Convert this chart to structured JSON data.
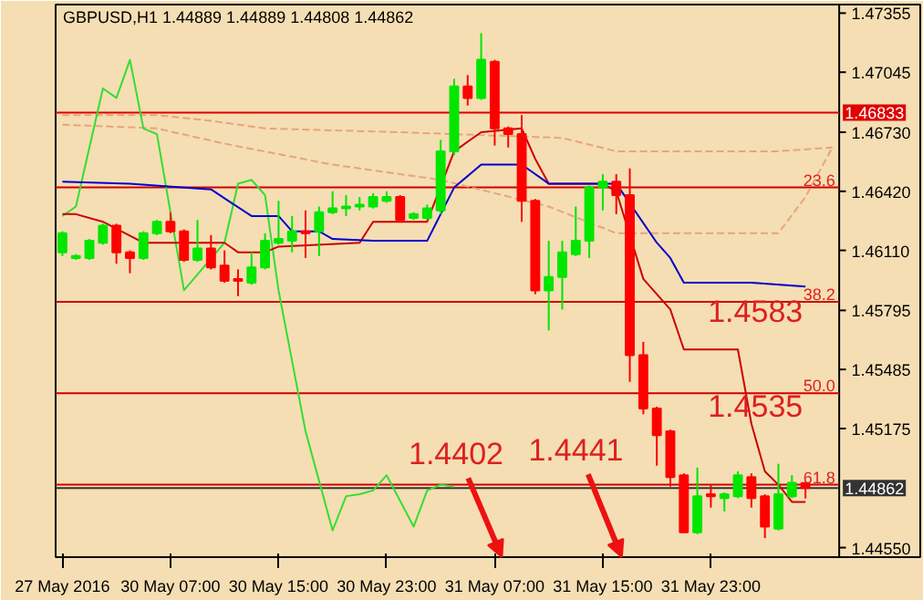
{
  "chart_data": {
    "type": "candlestick",
    "title": "GBPUSD,H1  1.44889 1.44889 1.44808 1.44862",
    "categories": [
      "27 May 2016",
      null,
      null,
      null,
      null,
      null,
      null,
      null,
      "30 May 07:00",
      null,
      null,
      null,
      null,
      null,
      null,
      null,
      "30 May 15:00",
      null,
      null,
      null,
      null,
      null,
      null,
      null,
      "30 May 23:00",
      null,
      null,
      null,
      null,
      null,
      null,
      null,
      "31 May 07:00",
      null,
      null,
      null,
      null,
      null,
      null,
      null,
      "31 May 15:00",
      null,
      null,
      null,
      null,
      null,
      null,
      null,
      "31 May 23:00",
      null,
      null,
      null,
      null,
      null,
      null,
      null,
      null,
      null
    ],
    "ohlc": [
      [
        1.461,
        1.4621,
        1.4608,
        1.462
      ],
      [
        1.4607,
        1.4609,
        1.4606,
        1.4608
      ],
      [
        1.4607,
        1.4617,
        1.4606,
        1.4616
      ],
      [
        1.4615,
        1.4625,
        1.4614,
        1.4624
      ],
      [
        1.4624,
        1.4625,
        1.4604,
        1.461
      ],
      [
        1.461,
        1.4611,
        1.4599,
        1.4607
      ],
      [
        1.4607,
        1.4621,
        1.4606,
        1.462
      ],
      [
        1.462,
        1.4627,
        1.4619,
        1.4626
      ],
      [
        1.4626,
        1.4631,
        1.462,
        1.4621
      ],
      [
        1.4621,
        1.4622,
        1.4605,
        1.4606
      ],
      [
        1.4606,
        1.4627,
        1.4605,
        1.4612
      ],
      [
        1.4612,
        1.4619,
        1.4601,
        1.4602
      ],
      [
        1.4603,
        1.4611,
        1.4594,
        1.4595
      ],
      [
        1.4596,
        1.4601,
        1.4587,
        1.4595
      ],
      [
        1.4594,
        1.461,
        1.4593,
        1.4602
      ],
      [
        1.4602,
        1.462,
        1.4601,
        1.4616
      ],
      [
        1.4615,
        1.4637,
        1.4614,
        1.4617
      ],
      [
        1.4616,
        1.4629,
        1.461,
        1.4621
      ],
      [
        1.4621,
        1.4632,
        1.4607,
        1.462
      ],
      [
        1.4621,
        1.4634,
        1.4608,
        1.4631
      ],
      [
        1.4631,
        1.4642,
        1.463,
        1.4633
      ],
      [
        1.4633,
        1.464,
        1.4629,
        1.4634
      ],
      [
        1.4634,
        1.4639,
        1.4632,
        1.4635
      ],
      [
        1.4634,
        1.4641,
        1.4633,
        1.4639
      ],
      [
        1.4637,
        1.4642,
        1.4636,
        1.4639
      ],
      [
        1.4639,
        1.464,
        1.4626,
        1.4627
      ],
      [
        1.4628,
        1.4631,
        1.4627,
        1.463
      ],
      [
        1.4628,
        1.4635,
        1.4627,
        1.4633
      ],
      [
        1.4632,
        1.4669,
        1.463,
        1.4663
      ],
      [
        1.4663,
        1.4701,
        1.4661,
        1.4697
      ],
      [
        1.4697,
        1.4703,
        1.4687,
        1.4691
      ],
      [
        1.4691,
        1.4725,
        1.469,
        1.4711
      ],
      [
        1.471,
        1.4711,
        1.4666,
        1.4675
      ],
      [
        1.4675,
        1.4676,
        1.4665,
        1.4672
      ],
      [
        1.4672,
        1.4682,
        1.4626,
        1.4637
      ],
      [
        1.4637,
        1.4638,
        1.4588,
        1.459
      ],
      [
        1.459,
        1.4616,
        1.4569,
        1.4597
      ],
      [
        1.4597,
        1.4616,
        1.458,
        1.461
      ],
      [
        1.4609,
        1.4634,
        1.4608,
        1.4616
      ],
      [
        1.4616,
        1.4645,
        1.4607,
        1.4644
      ],
      [
        1.4644,
        1.4651,
        1.4632,
        1.4647
      ],
      [
        1.4647,
        1.4651,
        1.463,
        1.464
      ],
      [
        1.464,
        1.4654,
        1.4542,
        1.4556
      ],
      [
        1.4556,
        1.4563,
        1.4525,
        1.4528
      ],
      [
        1.4528,
        1.4529,
        1.4498,
        1.4514
      ],
      [
        1.4516,
        1.4517,
        1.4487,
        1.4492
      ],
      [
        1.4493,
        1.4494,
        1.4463,
        1.4463
      ],
      [
        1.4463,
        1.4497,
        1.4462,
        1.4482
      ],
      [
        1.4483,
        1.4488,
        1.4476,
        1.4482
      ],
      [
        1.4481,
        1.4484,
        1.4474,
        1.4483
      ],
      [
        1.4482,
        1.4495,
        1.4481,
        1.4493
      ],
      [
        1.4492,
        1.4494,
        1.4476,
        1.4481
      ],
      [
        1.4482,
        1.4483,
        1.446,
        1.4466
      ],
      [
        1.4465,
        1.4499,
        1.4464,
        1.4483
      ],
      [
        1.4482,
        1.4493,
        1.4481,
        1.4489
      ],
      [
        1.44889,
        1.44889,
        1.44808,
        1.44862
      ],
      null,
      null
    ],
    "colors": [
      "#00e600",
      "#00e600",
      "#00e600",
      "#00e600",
      "#ff0000",
      "#ff0000",
      "#00e600",
      "#00e600",
      "#ff0000",
      "#ff0000",
      "#00e600",
      "#ff0000",
      "#ff0000",
      "#ff0000",
      "#00e600",
      "#00e600",
      "#00e600",
      "#00e600",
      "#ff0000",
      "#00e600",
      "#00e600",
      "#00e600",
      "#00e600",
      "#00e600",
      "#00e600",
      "#ff0000",
      "#00e600",
      "#00e600",
      "#00e600",
      "#00e600",
      "#ff0000",
      "#00e600",
      "#ff0000",
      "#ff0000",
      "#ff0000",
      "#ff0000",
      "#00e600",
      "#00e600",
      "#00e600",
      "#00e600",
      "#00e600",
      "#ff0000",
      "#ff0000",
      "#ff0000",
      "#ff0000",
      "#ff0000",
      "#ff0000",
      "#00e600",
      "#ff0000",
      "#00e600",
      "#00e600",
      "#ff0000",
      "#ff0000",
      "#00e600",
      "#00e600",
      "#ff0000",
      null,
      null
    ],
    "series": [
      {
        "type": "line",
        "color": "#e8a47c",
        "line_style": "dashed",
        "values": [
          1.4682,
          null,
          null,
          null,
          null,
          null,
          null,
          1.4682,
          null,
          null,
          null,
          1.4679,
          null,
          null,
          null,
          1.4675,
          null,
          null,
          null,
          null,
          null,
          null,
          null,
          null,
          null,
          1.4673,
          null,
          null,
          null,
          null,
          null,
          null,
          null,
          null,
          null,
          null,
          null,
          1.467,
          null,
          null,
          null,
          1.4663,
          null,
          null,
          null,
          null,
          null,
          null,
          null,
          null,
          null,
          null,
          null,
          1.4663,
          null,
          null,
          null,
          1.4665
        ]
      },
      {
        "type": "line",
        "color": "#e8a47c",
        "line_style": "dashed",
        "values": [
          1.4677,
          null,
          null,
          null,
          null,
          null,
          null,
          1.4675,
          null,
          null,
          null,
          null,
          1.4667,
          null,
          null,
          null,
          null,
          null,
          null,
          null,
          1.4656,
          null,
          null,
          null,
          null,
          null,
          null,
          null,
          1.4648,
          null,
          null,
          null,
          null,
          null,
          null,
          null,
          1.4634,
          null,
          null,
          null,
          null,
          1.462,
          null,
          null,
          null,
          null,
          null,
          null,
          null,
          null,
          null,
          null,
          null,
          1.462,
          null,
          1.4639,
          null,
          1.4665
        ]
      },
      {
        "type": "line",
        "color": "#33dd33",
        "line_style": "solid",
        "values": [
          1.4629,
          1.4634,
          null,
          1.4696,
          1.4691,
          1.4711,
          1.4675,
          1.4672,
          null,
          1.459,
          null,
          null,
          1.4615,
          1.4646,
          1.4648,
          1.464,
          1.459,
          null,
          1.4516,
          null,
          1.4464,
          1.4482,
          1.4483,
          1.4485,
          1.4493,
          null,
          1.4466,
          1.4485,
          1.4488,
          1.4487,
          null,
          null,
          null,
          null,
          null,
          null,
          null,
          null,
          null,
          null,
          null,
          null,
          null,
          null,
          null,
          null,
          null,
          null,
          null,
          null,
          null,
          null,
          null,
          null,
          null,
          null,
          null,
          null
        ]
      },
      {
        "type": "line",
        "color": "#cc0000",
        "line_style": "solid",
        "values": [
          1.463,
          1.463,
          null,
          1.4626,
          null,
          null,
          1.4615,
          null,
          null,
          null,
          null,
          null,
          1.4615,
          1.461,
          null,
          1.461,
          1.4613,
          null,
          null,
          null,
          null,
          null,
          1.4615,
          1.4626,
          null,
          null,
          null,
          1.4626,
          null,
          1.4663,
          null,
          1.4673,
          null,
          null,
          1.4675,
          1.4659,
          1.4646,
          null,
          null,
          null,
          1.4646,
          1.4642,
          null,
          1.4596,
          null,
          1.458,
          1.4559,
          null,
          null,
          null,
          1.4559,
          1.452,
          1.4495,
          1.4488,
          1.4479,
          1.4479,
          null,
          null
        ]
      },
      {
        "type": "line",
        "color": "#0000cc",
        "line_style": "solid",
        "values": [
          1.4647,
          null,
          null,
          null,
          null,
          1.4646,
          null,
          null,
          null,
          null,
          null,
          1.4643,
          null,
          null,
          1.4629,
          null,
          1.4629,
          1.4621,
          null,
          1.4621,
          1.4617,
          null,
          null,
          1.4616,
          null,
          null,
          null,
          1.4616,
          null,
          1.4644,
          null,
          1.4656,
          null,
          null,
          1.4656,
          null,
          1.4646,
          null,
          null,
          null,
          null,
          1.4646,
          null,
          null,
          1.4615,
          1.4607,
          1.4594,
          null,
          null,
          null,
          null,
          1.4594,
          null,
          null,
          null,
          1.4592,
          null,
          null
        ]
      }
    ],
    "ylim": [
      1.445,
      1.474
    ],
    "yticks": [
      {
        "value": 1.47355,
        "label": "1.47355"
      },
      {
        "value": 1.47045,
        "label": "1.47045"
      },
      {
        "value": 1.4673,
        "label": "1.46730"
      },
      {
        "value": 1.4642,
        "label": "1.46420"
      },
      {
        "value": 1.4611,
        "label": "1.46110"
      },
      {
        "value": 1.45795,
        "label": "1.45795"
      },
      {
        "value": 1.45485,
        "label": "1.45485"
      },
      {
        "value": 1.45175,
        "label": "1.45175"
      },
      {
        "value": 1.4455,
        "label": "1.44550"
      }
    ],
    "ref_lines": [
      {
        "axis": "y",
        "value": 1.46833,
        "label": "1.46833",
        "color": "#e00000"
      },
      {
        "axis": "y",
        "value": 1.4644,
        "color": "#d00000"
      },
      {
        "axis": "y",
        "value": 1.4584,
        "color": "#d00000"
      },
      {
        "axis": "y",
        "value": 1.4536,
        "color": "#d00000"
      },
      {
        "axis": "y",
        "value": 1.4488,
        "color": "#d00000"
      },
      {
        "axis": "y",
        "value": 1.44862,
        "label": "1.44862",
        "color": "#333333"
      }
    ],
    "annotations": [
      {
        "text": "23.6",
        "y": 1.4644
      },
      {
        "text": "38.2",
        "y": 1.4584
      },
      {
        "text": "50.0",
        "y": 1.4536
      },
      {
        "text": "61.8",
        "y": 1.4488
      },
      "1.4583",
      "1.4535",
      "1.4402",
      "1.4441"
    ],
    "grid": false
  }
}
